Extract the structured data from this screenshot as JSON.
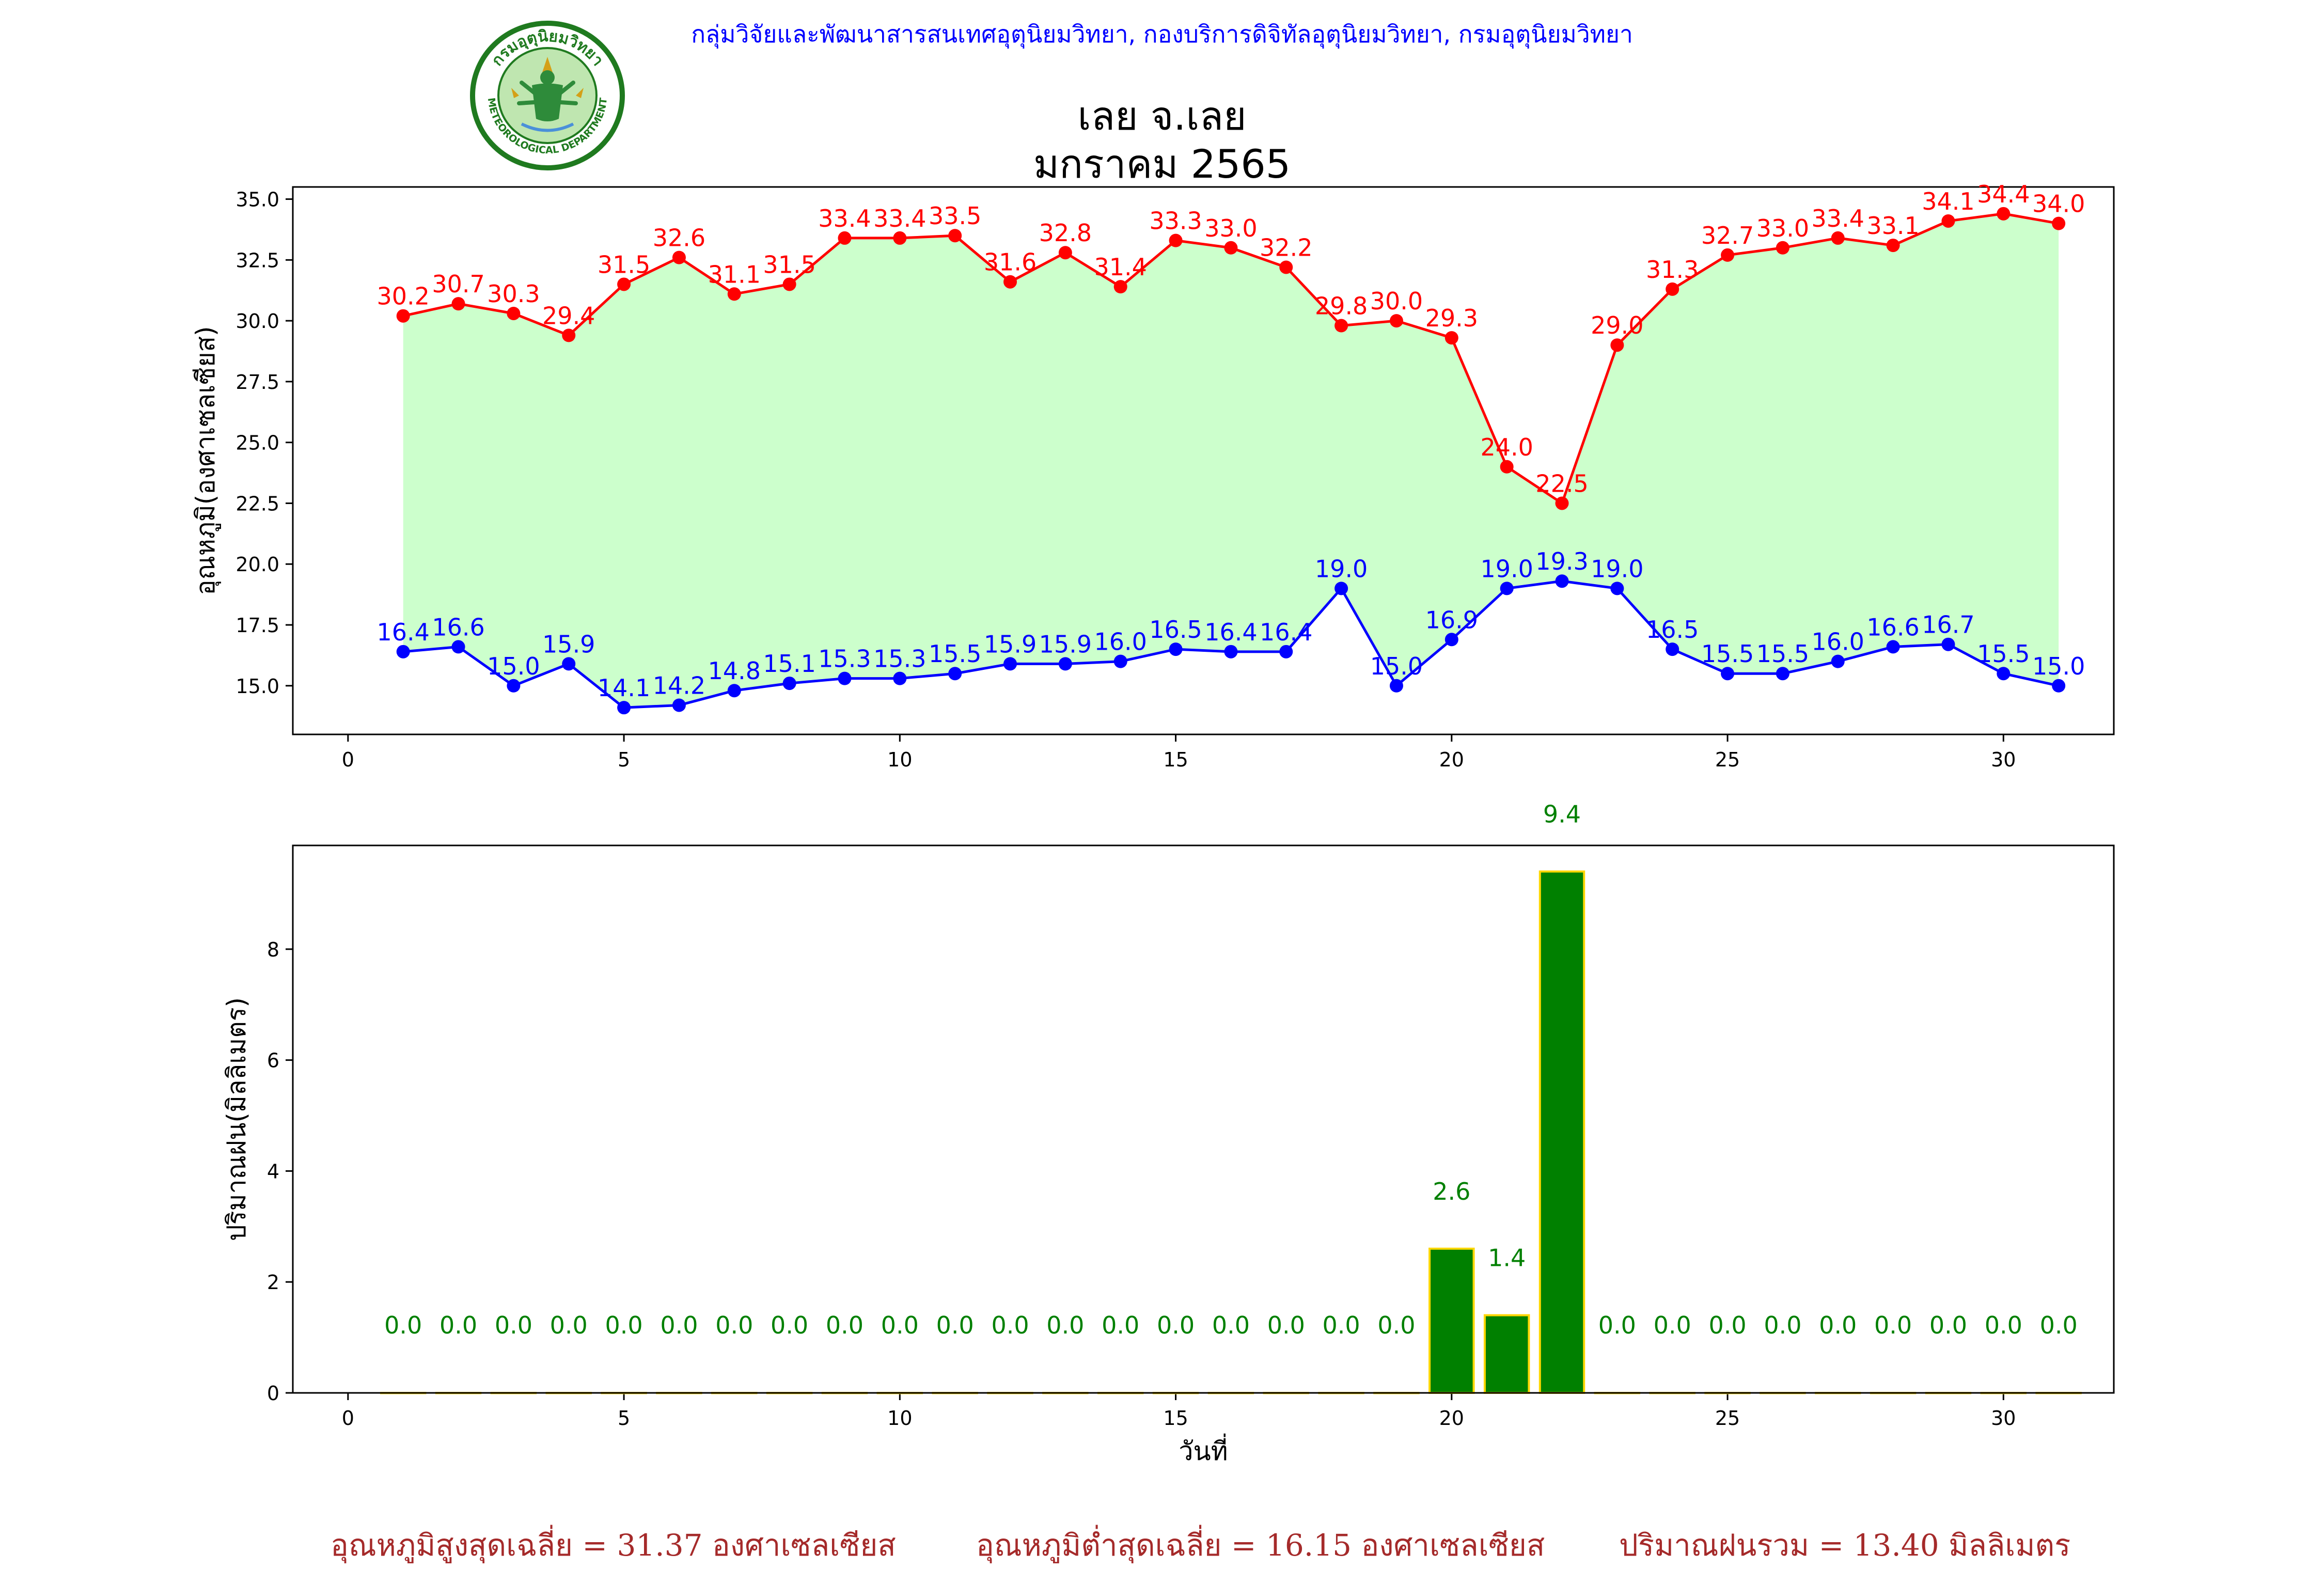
{
  "header": {
    "agency_line": "กลุ่มวิจัยและพัฒนาสารสนเทศอุตุนิยมวิทยา, กองบริการดิจิทัลอุตุนิยมวิทยา, กรมอุตุนิยมวิทยา"
  },
  "logo": {
    "top_text": "กรมอุตุนิยมวิทยา",
    "bottom_text": "METEOROLOGICAL DEPARTMENT",
    "colors": {
      "ring": "#1f7a1f",
      "inner": "#8fd17f",
      "figure": "#2e8b3a",
      "gold": "#d4a017"
    }
  },
  "title": {
    "station": "เลย จ.เลย",
    "period": "มกราคม 2565"
  },
  "chart_data": [
    {
      "type": "line",
      "ylabel": "อุณหภูมิ(องศาเซลเซียส)",
      "xlabel": "",
      "xlim": [
        -1,
        32
      ],
      "ylim": [
        13.0,
        35.5
      ],
      "xticks": [
        0,
        5,
        10,
        15,
        20,
        25,
        30
      ],
      "yticks": [
        15.0,
        17.5,
        20.0,
        22.5,
        25.0,
        27.5,
        30.0,
        32.5,
        35.0
      ],
      "fill_between": true,
      "colors": {
        "max": "#ff0000",
        "min": "#0000ff",
        "fill": "#ccffcc"
      },
      "x": [
        1,
        2,
        3,
        4,
        5,
        6,
        7,
        8,
        9,
        10,
        11,
        12,
        13,
        14,
        15,
        16,
        17,
        18,
        19,
        20,
        21,
        22,
        23,
        24,
        25,
        26,
        27,
        28,
        29,
        30,
        31
      ],
      "series": [
        {
          "key": "max",
          "values": [
            30.2,
            30.7,
            30.3,
            29.4,
            31.5,
            32.6,
            31.1,
            31.5,
            33.4,
            33.4,
            33.5,
            31.6,
            32.8,
            31.4,
            33.3,
            33.0,
            32.2,
            29.8,
            30.0,
            29.3,
            24.0,
            22.5,
            29.0,
            31.3,
            32.7,
            33.0,
            33.4,
            33.1,
            34.1,
            34.4,
            34.0
          ]
        },
        {
          "key": "min",
          "values": [
            16.4,
            16.6,
            15.0,
            15.9,
            14.1,
            14.2,
            14.8,
            15.1,
            15.3,
            15.3,
            15.5,
            15.9,
            15.9,
            16.0,
            16.5,
            16.4,
            16.4,
            19.0,
            15.0,
            16.9,
            19.0,
            19.3,
            19.0,
            16.5,
            15.5,
            15.5,
            16.0,
            16.6,
            16.7,
            15.5,
            15.0
          ]
        }
      ]
    },
    {
      "type": "bar",
      "ylabel": "ปริมาณฝน(มิลลิเมตร)",
      "xlabel": "วันที่",
      "xlim": [
        -1,
        32
      ],
      "ylim": [
        0,
        9.87
      ],
      "xticks": [
        0,
        5,
        10,
        15,
        20,
        25,
        30
      ],
      "yticks": [
        0,
        2,
        4,
        6,
        8
      ],
      "colors": {
        "bar": "#008000",
        "edge": "#ffd700",
        "label": "#008000"
      },
      "x": [
        1,
        2,
        3,
        4,
        5,
        6,
        7,
        8,
        9,
        10,
        11,
        12,
        13,
        14,
        15,
        16,
        17,
        18,
        19,
        20,
        21,
        22,
        23,
        24,
        25,
        26,
        27,
        28,
        29,
        30,
        31
      ],
      "values": [
        0.0,
        0.0,
        0.0,
        0.0,
        0.0,
        0.0,
        0.0,
        0.0,
        0.0,
        0.0,
        0.0,
        0.0,
        0.0,
        0.0,
        0.0,
        0.0,
        0.0,
        0.0,
        0.0,
        2.6,
        1.4,
        9.4,
        0.0,
        0.0,
        0.0,
        0.0,
        0.0,
        0.0,
        0.0,
        0.0,
        0.0
      ]
    }
  ],
  "summary": {
    "avg_max": "อุณหภูมิสูงสุดเฉลี่ย = 31.37 องศาเซลเซียส",
    "avg_min": "อุณหภูมิต่ำสุดเฉลี่ย = 16.15 องศาเซลเซียส",
    "total_rain": "ปริมาณฝนรวม = 13.40 มิลลิเมตร"
  }
}
